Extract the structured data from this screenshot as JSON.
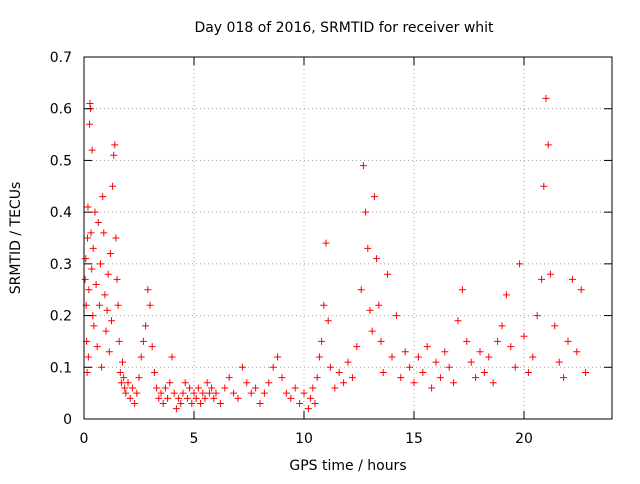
{
  "chart_data": {
    "type": "scatter",
    "title": "Day 018 of 2016, SRMTID for receiver whit",
    "xlabel": "GPS time / hours",
    "ylabel": "SRMTID / TECUs",
    "xlim": [
      0,
      24
    ],
    "ylim": [
      0,
      0.7
    ],
    "xticks": [
      0,
      5,
      10,
      15,
      20
    ],
    "yticks": [
      0,
      0.1,
      0.2,
      0.3,
      0.4,
      0.5,
      0.6,
      0.7
    ],
    "xtick_labels": [
      "0",
      "5",
      "10",
      "15",
      "20"
    ],
    "ytick_labels": [
      "0",
      "0.1",
      "0.2",
      "0.3",
      "0.4",
      "0.5",
      "0.6",
      "0.7"
    ],
    "grid": true,
    "marker": "+",
    "color": "#ff0000",
    "series": [
      {
        "name": "SRMTID",
        "points": [
          [
            0.05,
            0.27
          ],
          [
            0.08,
            0.31
          ],
          [
            0.1,
            0.22
          ],
          [
            0.12,
            0.15
          ],
          [
            0.14,
            0.09
          ],
          [
            0.16,
            0.35
          ],
          [
            0.18,
            0.41
          ],
          [
            0.2,
            0.12
          ],
          [
            0.22,
            0.25
          ],
          [
            0.25,
            0.57
          ],
          [
            0.27,
            0.61
          ],
          [
            0.3,
            0.6
          ],
          [
            0.32,
            0.36
          ],
          [
            0.35,
            0.29
          ],
          [
            0.37,
            0.52
          ],
          [
            0.4,
            0.2
          ],
          [
            0.42,
            0.33
          ],
          [
            0.45,
            0.18
          ],
          [
            0.5,
            0.4
          ],
          [
            0.55,
            0.26
          ],
          [
            0.6,
            0.14
          ],
          [
            0.65,
            0.38
          ],
          [
            0.7,
            0.22
          ],
          [
            0.75,
            0.3
          ],
          [
            0.8,
            0.1
          ],
          [
            0.85,
            0.43
          ],
          [
            0.9,
            0.36
          ],
          [
            0.95,
            0.24
          ],
          [
            1.0,
            0.17
          ],
          [
            1.05,
            0.21
          ],
          [
            1.1,
            0.28
          ],
          [
            1.15,
            0.13
          ],
          [
            1.2,
            0.32
          ],
          [
            1.25,
            0.19
          ],
          [
            1.3,
            0.45
          ],
          [
            1.35,
            0.51
          ],
          [
            1.4,
            0.53
          ],
          [
            1.45,
            0.35
          ],
          [
            1.5,
            0.27
          ],
          [
            1.55,
            0.22
          ],
          [
            1.6,
            0.15
          ],
          [
            1.65,
            0.09
          ],
          [
            1.7,
            0.07
          ],
          [
            1.75,
            0.11
          ],
          [
            1.8,
            0.08
          ],
          [
            1.85,
            0.06
          ],
          [
            1.9,
            0.05
          ],
          [
            2.0,
            0.07
          ],
          [
            2.1,
            0.04
          ],
          [
            2.2,
            0.06
          ],
          [
            2.3,
            0.03
          ],
          [
            2.4,
            0.05
          ],
          [
            2.5,
            0.08
          ],
          [
            2.6,
            0.12
          ],
          [
            2.7,
            0.15
          ],
          [
            2.8,
            0.18
          ],
          [
            2.9,
            0.25
          ],
          [
            3.0,
            0.22
          ],
          [
            3.1,
            0.14
          ],
          [
            3.2,
            0.09
          ],
          [
            3.3,
            0.06
          ],
          [
            3.4,
            0.04
          ],
          [
            3.5,
            0.05
          ],
          [
            3.6,
            0.03
          ],
          [
            3.7,
            0.06
          ],
          [
            3.8,
            0.04
          ],
          [
            3.9,
            0.07
          ],
          [
            4.0,
            0.12
          ],
          [
            4.1,
            0.05
          ],
          [
            4.2,
            0.02
          ],
          [
            4.3,
            0.04
          ],
          [
            4.4,
            0.03
          ],
          [
            4.5,
            0.05
          ],
          [
            4.6,
            0.07
          ],
          [
            4.7,
            0.04
          ],
          [
            4.8,
            0.06
          ],
          [
            4.9,
            0.03
          ],
          [
            5.0,
            0.05
          ],
          [
            5.1,
            0.04
          ],
          [
            5.2,
            0.06
          ],
          [
            5.3,
            0.03
          ],
          [
            5.4,
            0.05
          ],
          [
            5.5,
            0.04
          ],
          [
            5.6,
            0.07
          ],
          [
            5.7,
            0.05
          ],
          [
            5.8,
            0.06
          ],
          [
            5.9,
            0.04
          ],
          [
            6.0,
            0.05
          ],
          [
            6.2,
            0.03
          ],
          [
            6.4,
            0.06
          ],
          [
            6.6,
            0.08
          ],
          [
            6.8,
            0.05
          ],
          [
            7.0,
            0.04
          ],
          [
            7.2,
            0.1
          ],
          [
            7.4,
            0.07
          ],
          [
            7.6,
            0.05
          ],
          [
            7.8,
            0.06
          ],
          [
            8.0,
            0.03
          ],
          [
            8.2,
            0.05
          ],
          [
            8.4,
            0.07
          ],
          [
            8.6,
            0.1
          ],
          [
            8.8,
            0.12
          ],
          [
            9.0,
            0.08
          ],
          [
            9.2,
            0.05
          ],
          [
            9.4,
            0.04
          ],
          [
            9.6,
            0.06
          ],
          [
            9.8,
            0.03
          ],
          [
            10.0,
            0.05
          ],
          [
            10.2,
            0.02
          ],
          [
            10.3,
            0.04
          ],
          [
            10.4,
            0.06
          ],
          [
            10.5,
            0.03
          ],
          [
            10.6,
            0.08
          ],
          [
            10.7,
            0.12
          ],
          [
            10.8,
            0.15
          ],
          [
            10.9,
            0.22
          ],
          [
            11.0,
            0.34
          ],
          [
            11.1,
            0.19
          ],
          [
            11.2,
            0.1
          ],
          [
            11.4,
            0.06
          ],
          [
            11.6,
            0.09
          ],
          [
            11.8,
            0.07
          ],
          [
            12.0,
            0.11
          ],
          [
            12.2,
            0.08
          ],
          [
            12.4,
            0.14
          ],
          [
            12.6,
            0.25
          ],
          [
            12.7,
            0.49
          ],
          [
            12.8,
            0.4
          ],
          [
            12.9,
            0.33
          ],
          [
            13.0,
            0.21
          ],
          [
            13.1,
            0.17
          ],
          [
            13.2,
            0.43
          ],
          [
            13.3,
            0.31
          ],
          [
            13.4,
            0.22
          ],
          [
            13.5,
            0.15
          ],
          [
            13.6,
            0.09
          ],
          [
            13.8,
            0.28
          ],
          [
            14.0,
            0.12
          ],
          [
            14.2,
            0.2
          ],
          [
            14.4,
            0.08
          ],
          [
            14.6,
            0.13
          ],
          [
            14.8,
            0.1
          ],
          [
            15.0,
            0.07
          ],
          [
            15.2,
            0.12
          ],
          [
            15.4,
            0.09
          ],
          [
            15.6,
            0.14
          ],
          [
            15.8,
            0.06
          ],
          [
            16.0,
            0.11
          ],
          [
            16.2,
            0.08
          ],
          [
            16.4,
            0.13
          ],
          [
            16.6,
            0.1
          ],
          [
            16.8,
            0.07
          ],
          [
            17.0,
            0.19
          ],
          [
            17.2,
            0.25
          ],
          [
            17.4,
            0.15
          ],
          [
            17.6,
            0.11
          ],
          [
            17.8,
            0.08
          ],
          [
            18.0,
            0.13
          ],
          [
            18.2,
            0.09
          ],
          [
            18.4,
            0.12
          ],
          [
            18.6,
            0.07
          ],
          [
            18.8,
            0.15
          ],
          [
            19.0,
            0.18
          ],
          [
            19.2,
            0.24
          ],
          [
            19.4,
            0.14
          ],
          [
            19.6,
            0.1
          ],
          [
            19.8,
            0.3
          ],
          [
            20.0,
            0.16
          ],
          [
            20.2,
            0.09
          ],
          [
            20.4,
            0.12
          ],
          [
            20.6,
            0.2
          ],
          [
            20.8,
            0.27
          ],
          [
            20.9,
            0.45
          ],
          [
            21.0,
            0.62
          ],
          [
            21.1,
            0.53
          ],
          [
            21.2,
            0.28
          ],
          [
            21.4,
            0.18
          ],
          [
            21.6,
            0.11
          ],
          [
            21.8,
            0.08
          ],
          [
            22.0,
            0.15
          ],
          [
            22.2,
            0.27
          ],
          [
            22.4,
            0.13
          ],
          [
            22.6,
            0.25
          ],
          [
            22.8,
            0.09
          ]
        ]
      }
    ]
  }
}
